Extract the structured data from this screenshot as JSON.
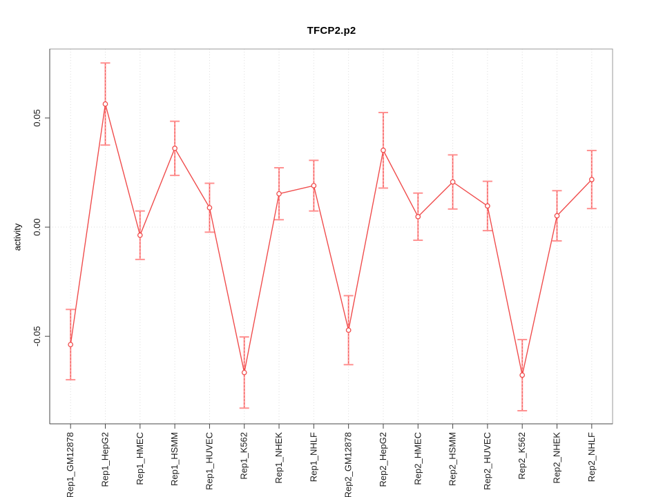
{
  "figure": {
    "title": "TFCP2.p2",
    "ylabel": "activity"
  },
  "chart_data": {
    "type": "line",
    "title": "TFCP2.p2",
    "xlabel": "",
    "ylabel": "activity",
    "legend": "none",
    "marker": "open-circle",
    "grid": "vertical dotted line at each category; horizontal dotted line at y=0",
    "categories": [
      "Rep1_GM12878",
      "Rep1_HepG2",
      "Rep1_HMEC",
      "Rep1_HSMM",
      "Rep1_HUVEC",
      "Rep1_K562",
      "Rep1_NHEK",
      "Rep1_NHLF",
      "Rep2_GM12878",
      "Rep2_HepG2",
      "Rep2_HMEC",
      "Rep2_HSMM",
      "Rep2_HUVEC",
      "Rep2_K562",
      "Rep2_NHEK",
      "Rep2_NHLF"
    ],
    "series": [
      {
        "name": "activity",
        "values": [
          -0.0538,
          0.0564,
          -0.0037,
          0.0361,
          0.0089,
          -0.0666,
          0.0153,
          0.019,
          -0.0472,
          0.0352,
          0.0048,
          0.0207,
          0.0097,
          -0.0678,
          0.0052,
          0.0218
        ],
        "errors": [
          0.0161,
          0.0188,
          0.0111,
          0.0124,
          0.0112,
          0.0163,
          0.0119,
          0.0116,
          0.0158,
          0.0173,
          0.0108,
          0.0124,
          0.0113,
          0.0163,
          0.0115,
          0.0133
        ]
      }
    ],
    "yticks": [
      -0.05,
      0,
      0.05
    ],
    "ytick_labels": [
      "-0.05",
      "0.00",
      "0.05"
    ],
    "ylim": [
      -0.0901,
      0.0816
    ],
    "colors": {
      "line": "#f04c4c",
      "marker": "#f04c4c",
      "error_bar_band": "#ffa3a3",
      "error_bar_cap": "#ff9090",
      "gridline": "#dcdcdc",
      "axis": "#444444",
      "box": "#999999"
    }
  }
}
